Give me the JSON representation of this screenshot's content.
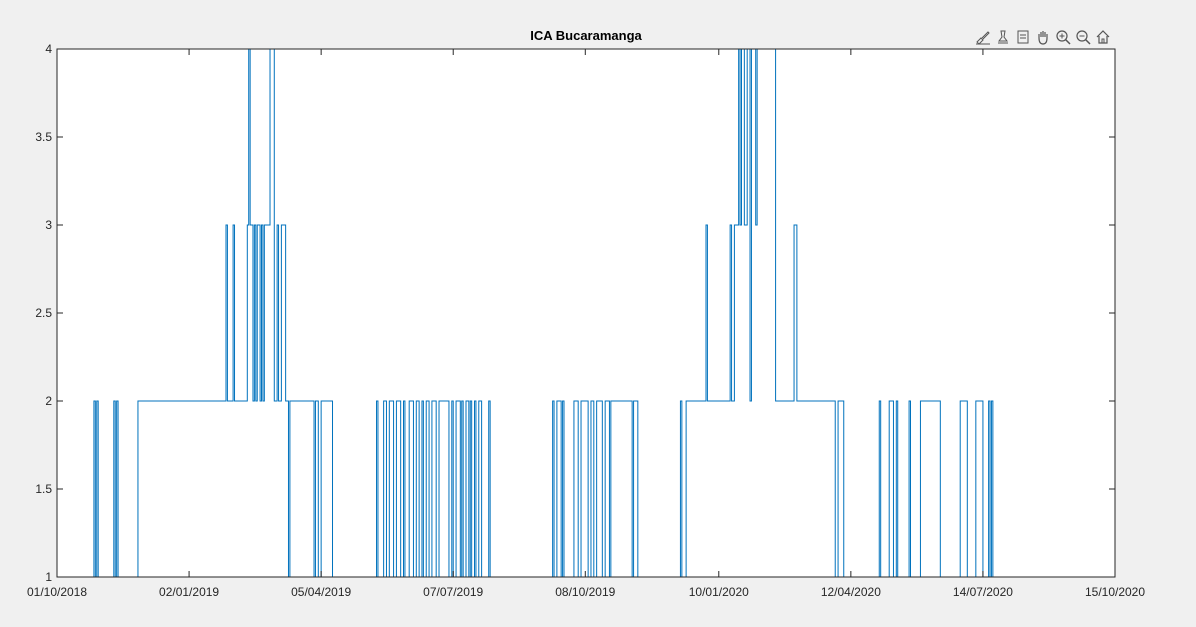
{
  "chart_data": {
    "type": "line",
    "title": "ICA Bucaramanga",
    "xlabel": "",
    "ylabel": "",
    "x_type": "date",
    "xlim": [
      "2018-10-01",
      "2020-10-15"
    ],
    "ylim": [
      1,
      4
    ],
    "xticks": [
      "2018-10-01",
      "2019-01-02",
      "2019-04-05",
      "2019-07-07",
      "2019-10-08",
      "2020-01-10",
      "2020-04-12",
      "2020-07-14",
      "2020-10-15"
    ],
    "xtick_labels": [
      "01/10/2018",
      "02/01/2019",
      "05/04/2019",
      "07/07/2019",
      "08/10/2019",
      "10/01/2020",
      "12/04/2020",
      "14/07/2020",
      "15/10/2020"
    ],
    "yticks": [
      1,
      1.5,
      2,
      2.5,
      3,
      3.5,
      4
    ],
    "ytick_labels": [
      "1",
      "1.5",
      "2",
      "2.5",
      "3",
      "3.5",
      "4"
    ],
    "grid": false,
    "line_color": "#0072bd",
    "series": [
      {
        "points": [
          [
            "2018-10-01",
            1
          ],
          [
            "2018-10-27",
            1
          ],
          [
            "2018-10-27",
            2
          ],
          [
            "2018-10-28",
            2
          ],
          [
            "2018-10-28",
            1
          ],
          [
            "2018-10-29",
            1
          ],
          [
            "2018-10-29",
            2
          ],
          [
            "2018-10-30",
            2
          ],
          [
            "2018-10-30",
            1
          ],
          [
            "2018-11-10",
            1
          ],
          [
            "2018-11-10",
            2
          ],
          [
            "2018-11-11",
            2
          ],
          [
            "2018-11-11",
            1
          ],
          [
            "2018-11-12",
            1
          ],
          [
            "2018-11-12",
            2
          ],
          [
            "2018-11-13",
            2
          ],
          [
            "2018-11-13",
            1
          ],
          [
            "2018-11-27",
            1
          ],
          [
            "2018-11-27",
            2
          ],
          [
            "2019-01-28",
            2
          ],
          [
            "2019-01-28",
            3
          ],
          [
            "2019-01-29",
            3
          ],
          [
            "2019-01-29",
            2
          ],
          [
            "2019-02-02",
            2
          ],
          [
            "2019-02-02",
            3
          ],
          [
            "2019-02-03",
            3
          ],
          [
            "2019-02-03",
            2
          ],
          [
            "2019-02-12",
            2
          ],
          [
            "2019-02-12",
            3
          ],
          [
            "2019-02-13",
            3
          ],
          [
            "2019-02-13",
            4
          ],
          [
            "2019-02-14",
            4
          ],
          [
            "2019-02-14",
            3
          ],
          [
            "2019-02-16",
            3
          ],
          [
            "2019-02-16",
            2
          ],
          [
            "2019-02-17",
            2
          ],
          [
            "2019-02-17",
            3
          ],
          [
            "2019-02-18",
            3
          ],
          [
            "2019-02-18",
            2
          ],
          [
            "2019-02-19",
            2
          ],
          [
            "2019-02-19",
            3
          ],
          [
            "2019-02-21",
            3
          ],
          [
            "2019-02-21",
            2
          ],
          [
            "2019-02-22",
            2
          ],
          [
            "2019-02-22",
            3
          ],
          [
            "2019-02-23",
            3
          ],
          [
            "2019-02-23",
            2
          ],
          [
            "2019-02-24",
            2
          ],
          [
            "2019-02-24",
            3
          ],
          [
            "2019-02-28",
            3
          ],
          [
            "2019-02-28",
            4
          ],
          [
            "2019-03-03",
            4
          ],
          [
            "2019-03-03",
            2
          ],
          [
            "2019-03-05",
            2
          ],
          [
            "2019-03-05",
            3
          ],
          [
            "2019-03-06",
            3
          ],
          [
            "2019-03-06",
            2
          ],
          [
            "2019-03-08",
            2
          ],
          [
            "2019-03-08",
            3
          ],
          [
            "2019-03-11",
            3
          ],
          [
            "2019-03-11",
            2
          ],
          [
            "2019-03-13",
            2
          ],
          [
            "2019-03-13",
            1
          ],
          [
            "2019-03-14",
            1
          ],
          [
            "2019-03-14",
            2
          ],
          [
            "2019-03-31",
            2
          ],
          [
            "2019-03-31",
            1
          ],
          [
            "2019-04-01",
            1
          ],
          [
            "2019-04-01",
            2
          ],
          [
            "2019-04-03",
            2
          ],
          [
            "2019-04-03",
            1
          ],
          [
            "2019-04-05",
            1
          ],
          [
            "2019-04-05",
            2
          ],
          [
            "2019-04-13",
            2
          ],
          [
            "2019-04-13",
            1
          ],
          [
            "2019-05-14",
            1
          ],
          [
            "2019-05-14",
            2
          ],
          [
            "2019-05-15",
            2
          ],
          [
            "2019-05-15",
            1
          ],
          [
            "2019-05-19",
            1
          ],
          [
            "2019-05-19",
            2
          ],
          [
            "2019-05-21",
            2
          ],
          [
            "2019-05-21",
            1
          ],
          [
            "2019-05-23",
            1
          ],
          [
            "2019-05-23",
            2
          ],
          [
            "2019-05-26",
            2
          ],
          [
            "2019-05-26",
            1
          ],
          [
            "2019-05-28",
            1
          ],
          [
            "2019-05-28",
            2
          ],
          [
            "2019-05-31",
            2
          ],
          [
            "2019-05-31",
            1
          ],
          [
            "2019-06-02",
            1
          ],
          [
            "2019-06-02",
            2
          ],
          [
            "2019-06-03",
            2
          ],
          [
            "2019-06-03",
            1
          ],
          [
            "2019-06-06",
            1
          ],
          [
            "2019-06-06",
            2
          ],
          [
            "2019-06-09",
            2
          ],
          [
            "2019-06-09",
            1
          ],
          [
            "2019-06-11",
            1
          ],
          [
            "2019-06-11",
            2
          ],
          [
            "2019-06-13",
            2
          ],
          [
            "2019-06-13",
            1
          ],
          [
            "2019-06-15",
            1
          ],
          [
            "2019-06-15",
            2
          ],
          [
            "2019-06-16",
            2
          ],
          [
            "2019-06-16",
            1
          ],
          [
            "2019-06-18",
            1
          ],
          [
            "2019-06-18",
            2
          ],
          [
            "2019-06-20",
            2
          ],
          [
            "2019-06-20",
            1
          ],
          [
            "2019-06-22",
            1
          ],
          [
            "2019-06-22",
            2
          ],
          [
            "2019-06-25",
            2
          ],
          [
            "2019-06-25",
            1
          ],
          [
            "2019-06-27",
            1
          ],
          [
            "2019-06-27",
            2
          ],
          [
            "2019-07-04",
            2
          ],
          [
            "2019-07-04",
            1
          ],
          [
            "2019-07-06",
            1
          ],
          [
            "2019-07-06",
            2
          ],
          [
            "2019-07-07",
            2
          ],
          [
            "2019-07-07",
            1
          ],
          [
            "2019-07-09",
            1
          ],
          [
            "2019-07-09",
            2
          ],
          [
            "2019-07-12",
            2
          ],
          [
            "2019-07-12",
            1
          ],
          [
            "2019-07-13",
            1
          ],
          [
            "2019-07-13",
            2
          ],
          [
            "2019-07-14",
            2
          ],
          [
            "2019-07-14",
            1
          ],
          [
            "2019-07-16",
            1
          ],
          [
            "2019-07-16",
            2
          ],
          [
            "2019-07-18",
            2
          ],
          [
            "2019-07-18",
            1
          ],
          [
            "2019-07-19",
            1
          ],
          [
            "2019-07-19",
            2
          ],
          [
            "2019-07-20",
            2
          ],
          [
            "2019-07-20",
            1
          ],
          [
            "2019-07-22",
            1
          ],
          [
            "2019-07-22",
            2
          ],
          [
            "2019-07-23",
            2
          ],
          [
            "2019-07-23",
            1
          ],
          [
            "2019-07-25",
            1
          ],
          [
            "2019-07-25",
            2
          ],
          [
            "2019-07-27",
            2
          ],
          [
            "2019-07-27",
            1
          ],
          [
            "2019-08-01",
            1
          ],
          [
            "2019-08-01",
            2
          ],
          [
            "2019-08-02",
            2
          ],
          [
            "2019-08-02",
            1
          ],
          [
            "2019-09-15",
            1
          ],
          [
            "2019-09-15",
            2
          ],
          [
            "2019-09-16",
            2
          ],
          [
            "2019-09-16",
            1
          ],
          [
            "2019-09-18",
            1
          ],
          [
            "2019-09-18",
            2
          ],
          [
            "2019-09-21",
            2
          ],
          [
            "2019-09-21",
            1
          ],
          [
            "2019-09-22",
            1
          ],
          [
            "2019-09-22",
            2
          ],
          [
            "2019-09-23",
            2
          ],
          [
            "2019-09-23",
            1
          ],
          [
            "2019-09-30",
            1
          ],
          [
            "2019-09-30",
            2
          ],
          [
            "2019-10-03",
            2
          ],
          [
            "2019-10-03",
            1
          ],
          [
            "2019-10-05",
            1
          ],
          [
            "2019-10-05",
            2
          ],
          [
            "2019-10-10",
            2
          ],
          [
            "2019-10-10",
            1
          ],
          [
            "2019-10-12",
            1
          ],
          [
            "2019-10-12",
            2
          ],
          [
            "2019-10-14",
            2
          ],
          [
            "2019-10-14",
            1
          ],
          [
            "2019-10-16",
            1
          ],
          [
            "2019-10-16",
            2
          ],
          [
            "2019-10-20",
            2
          ],
          [
            "2019-10-20",
            1
          ],
          [
            "2019-10-22",
            1
          ],
          [
            "2019-10-22",
            2
          ],
          [
            "2019-10-25",
            2
          ],
          [
            "2019-10-25",
            1
          ],
          [
            "2019-10-26",
            1
          ],
          [
            "2019-10-26",
            2
          ],
          [
            "2019-11-10",
            2
          ],
          [
            "2019-11-10",
            1
          ],
          [
            "2019-11-11",
            1
          ],
          [
            "2019-11-11",
            2
          ],
          [
            "2019-11-14",
            2
          ],
          [
            "2019-11-14",
            1
          ],
          [
            "2019-12-14",
            1
          ],
          [
            "2019-12-14",
            2
          ],
          [
            "2019-12-15",
            2
          ],
          [
            "2019-12-15",
            1
          ],
          [
            "2019-12-18",
            1
          ],
          [
            "2019-12-18",
            2
          ],
          [
            "2020-01-01",
            2
          ],
          [
            "2020-01-01",
            3
          ],
          [
            "2020-01-02",
            3
          ],
          [
            "2020-01-02",
            2
          ],
          [
            "2020-01-18",
            2
          ],
          [
            "2020-01-18",
            3
          ],
          [
            "2020-01-19",
            3
          ],
          [
            "2020-01-19",
            2
          ],
          [
            "2020-01-21",
            2
          ],
          [
            "2020-01-21",
            3
          ],
          [
            "2020-01-24",
            3
          ],
          [
            "2020-01-24",
            4
          ],
          [
            "2020-01-25",
            4
          ],
          [
            "2020-01-25",
            3
          ],
          [
            "2020-01-26",
            3
          ],
          [
            "2020-01-26",
            4
          ],
          [
            "2020-01-28",
            4
          ],
          [
            "2020-01-28",
            3
          ],
          [
            "2020-01-30",
            3
          ],
          [
            "2020-01-30",
            4
          ],
          [
            "2020-02-01",
            4
          ],
          [
            "2020-02-01",
            2
          ],
          [
            "2020-02-02",
            2
          ],
          [
            "2020-02-02",
            4
          ],
          [
            "2020-02-05",
            4
          ],
          [
            "2020-02-05",
            3
          ],
          [
            "2020-02-06",
            3
          ],
          [
            "2020-02-06",
            4
          ],
          [
            "2020-02-19",
            4
          ],
          [
            "2020-02-19",
            2
          ],
          [
            "2020-03-03",
            2
          ],
          [
            "2020-03-03",
            3
          ],
          [
            "2020-03-05",
            3
          ],
          [
            "2020-03-05",
            2
          ],
          [
            "2020-04-01",
            2
          ],
          [
            "2020-04-01",
            1
          ],
          [
            "2020-04-03",
            1
          ],
          [
            "2020-04-03",
            2
          ],
          [
            "2020-04-07",
            2
          ],
          [
            "2020-04-07",
            1
          ],
          [
            "2020-05-02",
            1
          ],
          [
            "2020-05-02",
            2
          ],
          [
            "2020-05-03",
            2
          ],
          [
            "2020-05-03",
            1
          ],
          [
            "2020-05-09",
            1
          ],
          [
            "2020-05-09",
            2
          ],
          [
            "2020-05-12",
            2
          ],
          [
            "2020-05-12",
            1
          ],
          [
            "2020-05-14",
            1
          ],
          [
            "2020-05-14",
            2
          ],
          [
            "2020-05-15",
            2
          ],
          [
            "2020-05-15",
            1
          ],
          [
            "2020-05-23",
            1
          ],
          [
            "2020-05-23",
            2
          ],
          [
            "2020-05-24",
            2
          ],
          [
            "2020-05-24",
            1
          ],
          [
            "2020-05-31",
            1
          ],
          [
            "2020-05-31",
            2
          ],
          [
            "2020-06-14",
            2
          ],
          [
            "2020-06-14",
            1
          ],
          [
            "2020-06-28",
            1
          ],
          [
            "2020-06-28",
            2
          ],
          [
            "2020-07-03",
            2
          ],
          [
            "2020-07-03",
            1
          ],
          [
            "2020-07-09",
            1
          ],
          [
            "2020-07-09",
            2
          ],
          [
            "2020-07-14",
            2
          ],
          [
            "2020-07-14",
            1
          ],
          [
            "2020-07-18",
            1
          ],
          [
            "2020-07-18",
            2
          ],
          [
            "2020-07-19",
            2
          ],
          [
            "2020-07-19",
            1
          ],
          [
            "2020-07-20",
            1
          ],
          [
            "2020-07-20",
            2
          ],
          [
            "2020-07-21",
            2
          ],
          [
            "2020-07-21",
            1
          ],
          [
            "2020-08-10",
            1
          ]
        ]
      }
    ]
  },
  "toolbar": {
    "icons": [
      "brush-icon",
      "data-tips-icon",
      "legend-icon",
      "pan-icon",
      "zoom-in-icon",
      "zoom-out-icon",
      "home-icon"
    ]
  }
}
